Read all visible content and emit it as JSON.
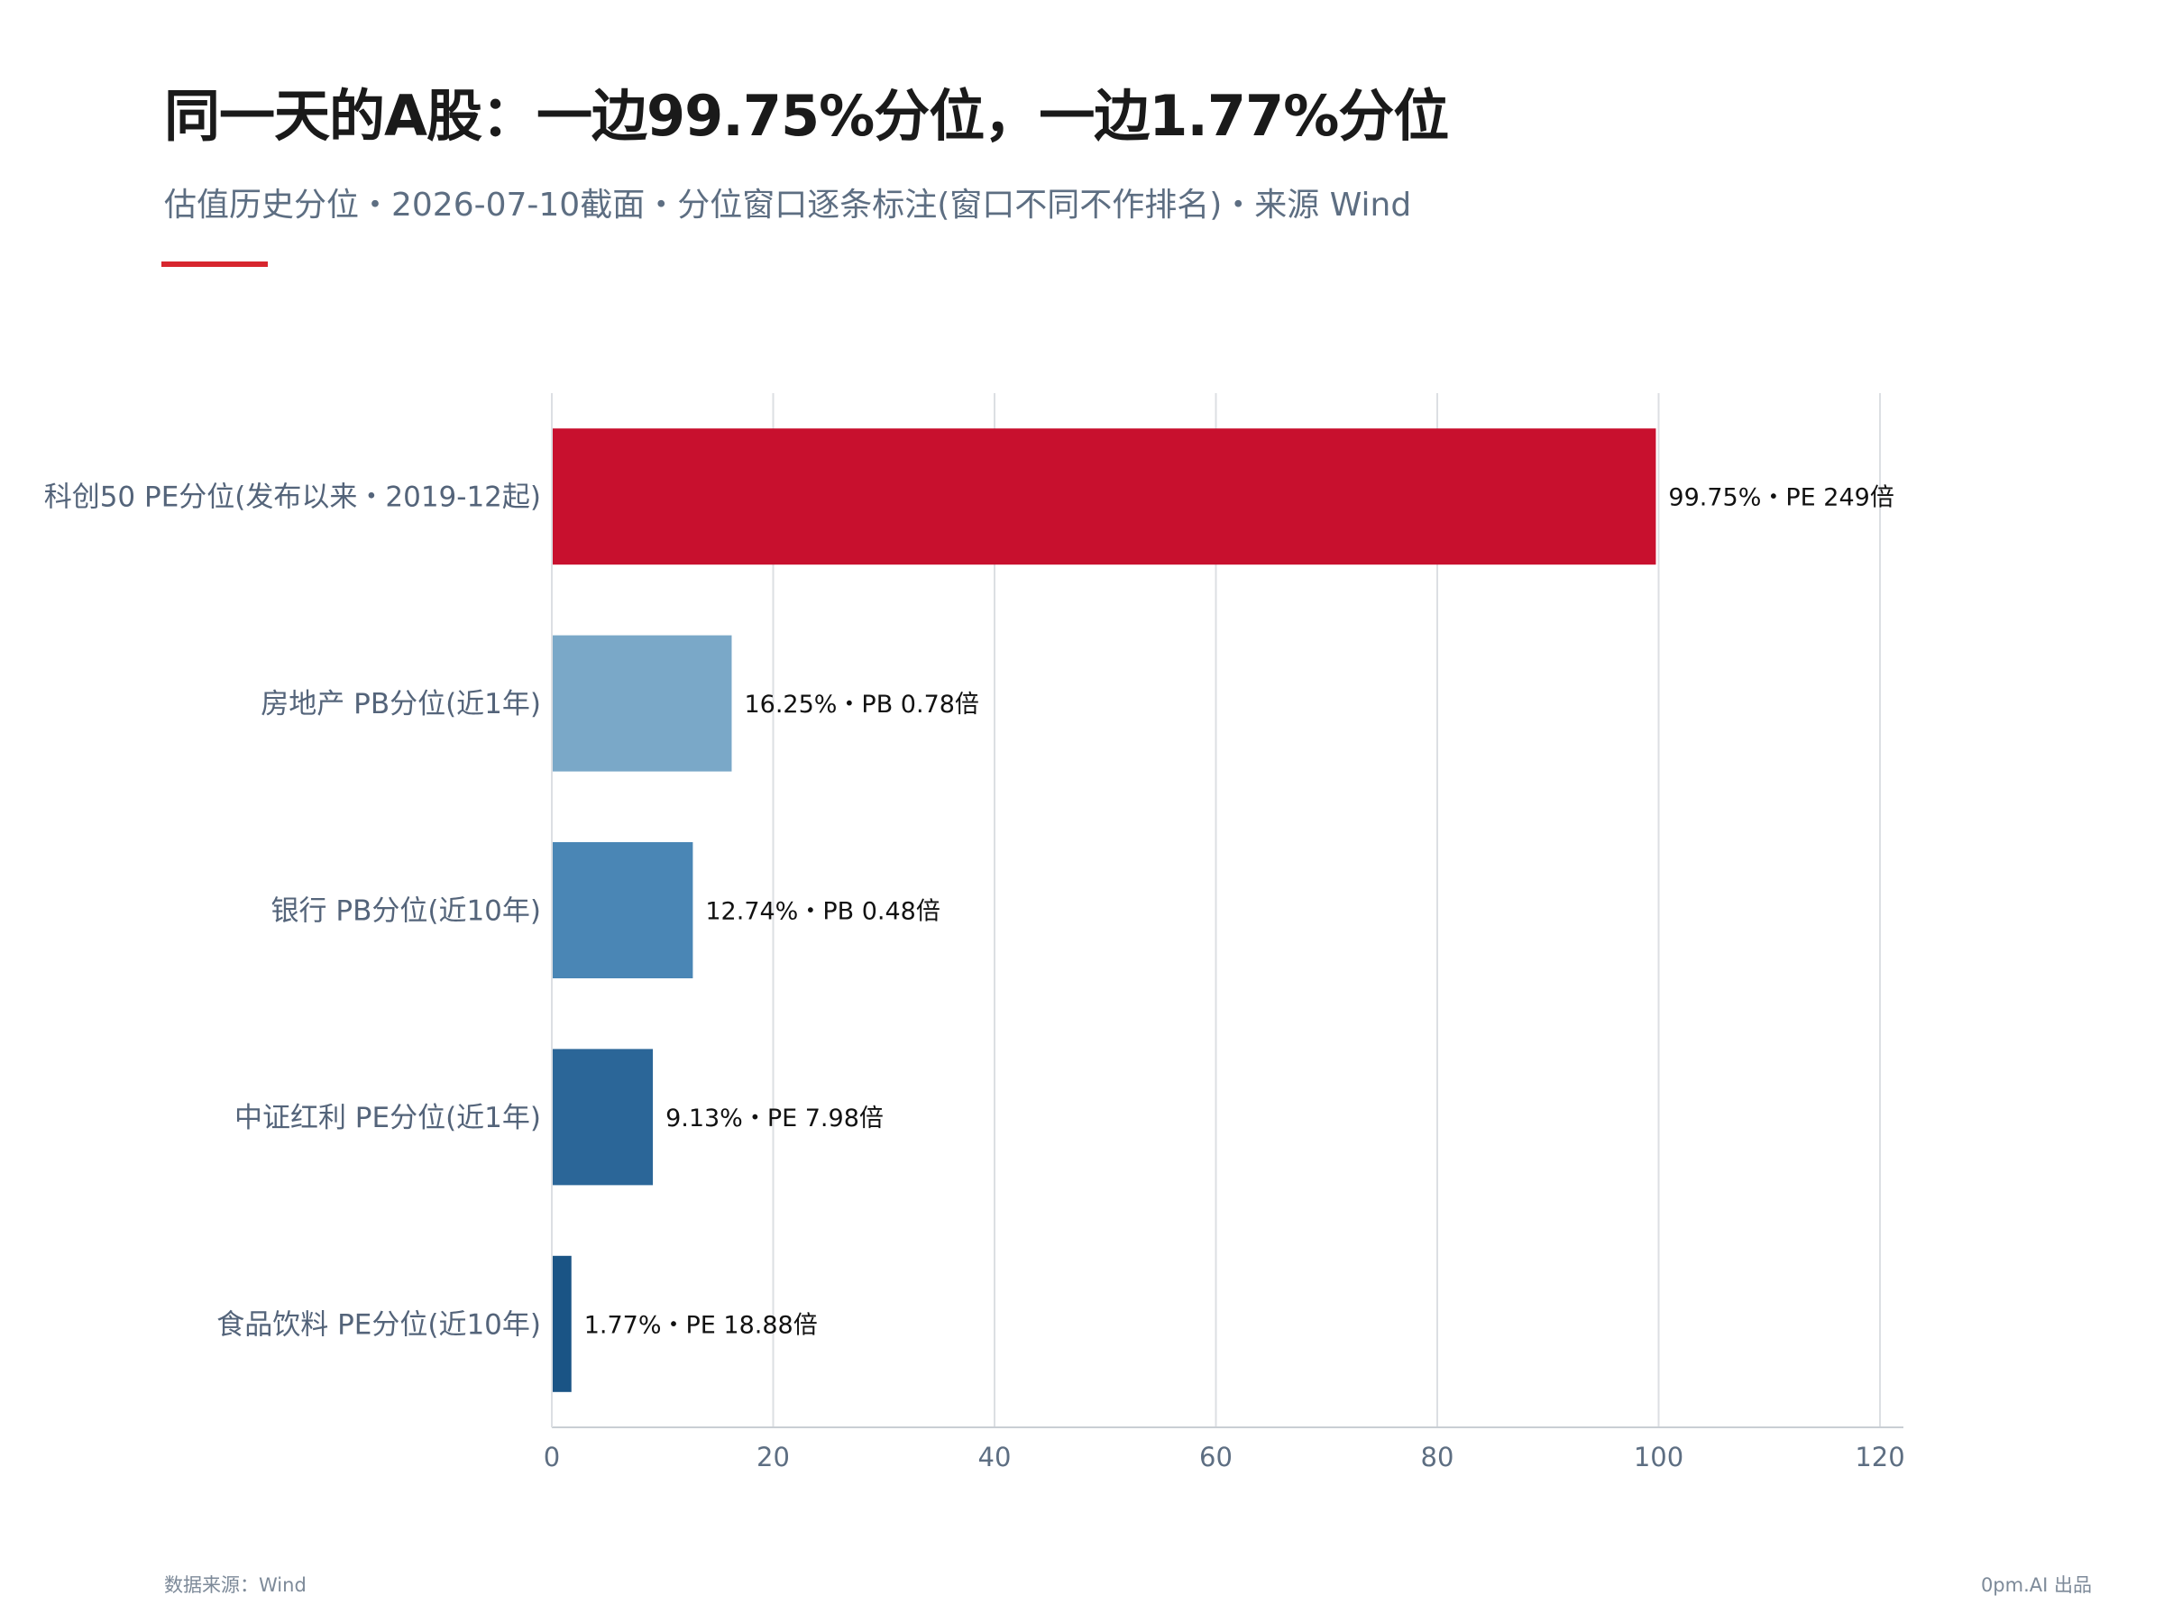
{
  "title": "同一天的A股：一边99.75%分位，一边1.77%分位",
  "subtitle": "估值历史分位・2026-07-10截面・分位窗口逐条标注(窗口不同不作排名)・来源 Wind",
  "accent_color": "#d7262e",
  "footer": {
    "source": "数据来源：Wind",
    "credit": "0pm.AI 出品"
  },
  "chart_data": {
    "type": "bar",
    "orientation": "horizontal",
    "categories": [
      "科创50 PE分位(发布以来・2019-12起)",
      "房地产 PB分位(近1年)",
      "银行 PB分位(近10年)",
      "中证红利 PE分位(近1年)",
      "食品饮料 PE分位(近10年)"
    ],
    "values": [
      99.75,
      16.25,
      12.74,
      9.13,
      1.77
    ],
    "value_labels": [
      "99.75%・PE 249倍",
      "16.25%・PB 0.78倍",
      "12.74%・PB 0.48倍",
      "9.13%・PE 7.98倍",
      "1.77%・PE 18.88倍"
    ],
    "colors": [
      "#c8102e",
      "#7aa8c8",
      "#4a86b5",
      "#2b6698",
      "#1a5485"
    ],
    "xlim": [
      0,
      120
    ],
    "xticks": [
      0,
      20,
      40,
      60,
      80,
      100,
      120
    ],
    "grid": true,
    "xlabel": "",
    "ylabel": ""
  }
}
